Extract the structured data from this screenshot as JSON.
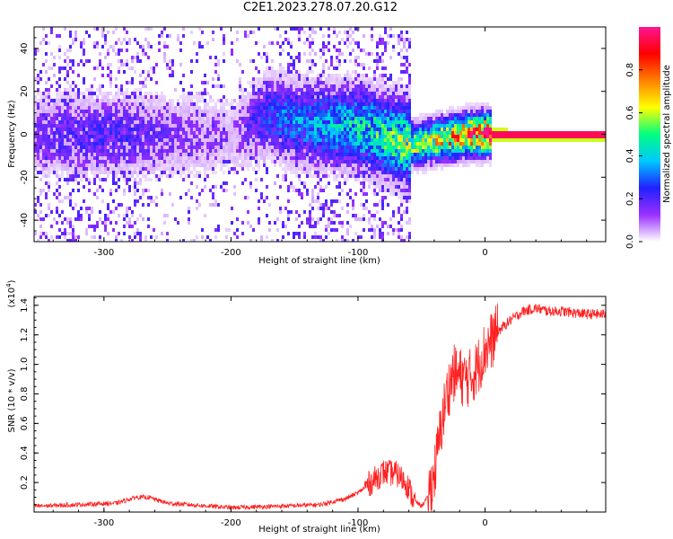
{
  "title": "C2E1.2023.278.07.20.G12",
  "chart_data": [
    {
      "id": "spectrogram",
      "type": "heatmap",
      "xlabel": "Height of straight line (km)",
      "ylabel": "Frequency (Hz)",
      "xlim": [
        -355,
        95
      ],
      "ylim": [
        -50,
        50
      ],
      "xticks": [
        -300,
        -200,
        -100,
        0
      ],
      "xtick_labels": [
        "-300",
        "-200",
        "-100",
        "0"
      ],
      "yticks": [
        -40,
        -20,
        0,
        20,
        40
      ],
      "ytick_labels": [
        "-40",
        "-20",
        "0",
        "20",
        "40"
      ],
      "colorbar": {
        "label": "Normalized spectral amplitude",
        "range": [
          0,
          1
        ],
        "ticks": [
          0.0,
          0.2,
          0.4,
          0.6,
          0.8
        ],
        "tick_labels": [
          "0.0",
          "0.2",
          "0.4",
          "0.6",
          "0.8"
        ],
        "colors": [
          "#ffffff",
          "#9b30ff",
          "#2020ff",
          "#00c8ff",
          "#00ff80",
          "#ffff00",
          "#ff8000",
          "#ff0000",
          "#ff1493"
        ]
      },
      "signal_track": {
        "x": [
          -355,
          -300,
          -250,
          -200,
          -170,
          -150,
          -120,
          -100,
          -80,
          -65,
          -55,
          -40,
          -20,
          0,
          20,
          95
        ],
        "freq": [
          0,
          1,
          0,
          0,
          10,
          6,
          5,
          4,
          0,
          -3,
          -4,
          -2,
          0,
          1,
          0,
          0
        ],
        "amplitude": [
          0.15,
          0.2,
          0.15,
          0.1,
          0.25,
          0.3,
          0.35,
          0.4,
          0.45,
          0.5,
          0.55,
          0.6,
          0.75,
          0.85,
          0.95,
          0.95
        ]
      }
    },
    {
      "id": "snr",
      "type": "line",
      "xlabel": "Height of straight line (km)",
      "ylabel": "SNR (10 * v/v)",
      "yscale_label": "(x10",
      "yscale_exponent": "4",
      "yscale_suffix": ")",
      "xlim": [
        -355,
        95
      ],
      "ylim": [
        0,
        1.46
      ],
      "xticks": [
        -300,
        -200,
        -100,
        0
      ],
      "xtick_labels": [
        "-300",
        "-200",
        "-100",
        "0"
      ],
      "yticks": [
        0.2,
        0.4,
        0.6,
        0.8,
        1.0,
        1.2,
        1.4
      ],
      "ytick_labels": [
        "0.2",
        "0.4",
        "0.6",
        "0.8",
        "1.0",
        "1.2",
        "1.4"
      ],
      "color": "#ff2020",
      "series": [
        {
          "x": [
            -355,
            -320,
            -290,
            -275,
            -265,
            -250,
            -200,
            -160,
            -130,
            -120,
            -110,
            -100,
            -90,
            -80,
            -70,
            -62,
            -56,
            -50,
            -45,
            -40,
            -35,
            -30,
            -25,
            -20,
            -15,
            -10,
            -5,
            0,
            10,
            20,
            30,
            40,
            50,
            60,
            70,
            80,
            95
          ],
          "y": [
            0.04,
            0.05,
            0.06,
            0.1,
            0.1,
            0.06,
            0.03,
            0.04,
            0.05,
            0.07,
            0.09,
            0.13,
            0.2,
            0.27,
            0.26,
            0.2,
            0.08,
            0.04,
            0.1,
            0.25,
            0.55,
            0.8,
            0.94,
            0.92,
            0.9,
            0.92,
            1.0,
            1.1,
            1.22,
            1.3,
            1.36,
            1.38,
            1.36,
            1.36,
            1.35,
            1.34,
            1.34
          ]
        }
      ]
    }
  ]
}
